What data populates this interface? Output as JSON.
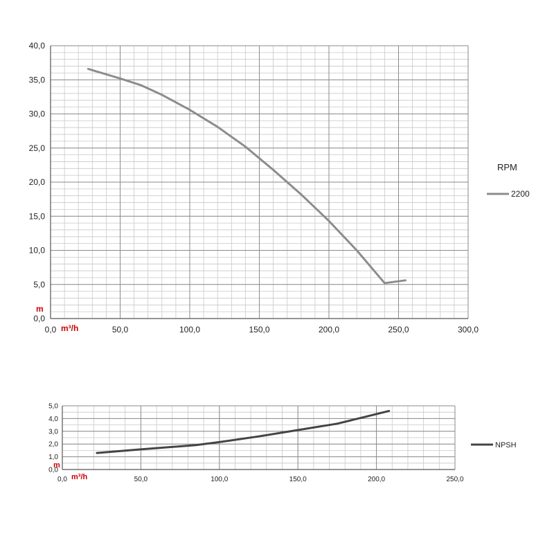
{
  "chart_data": [
    {
      "type": "line",
      "xlabel": "m³/h",
      "ylabel": "m",
      "xlim": [
        0,
        300
      ],
      "ylim": [
        0,
        40
      ],
      "x_ticks": [
        "0,0",
        "50,0",
        "100,0",
        "150,0",
        "200,0",
        "250,0",
        "300,0"
      ],
      "y_ticks": [
        "0,0",
        "5,0",
        "10,0",
        "15,0",
        "20,0",
        "25,0",
        "30,0",
        "35,0",
        "40,0"
      ],
      "grid": true,
      "legend_title": "RPM",
      "legend_position": "right",
      "series": [
        {
          "name": "2200",
          "color": "#8c8c8c",
          "x": [
            27,
            50,
            65,
            80,
            100,
            120,
            140,
            160,
            180,
            200,
            220,
            240,
            255
          ],
          "y": [
            36.6,
            35.2,
            34.2,
            32.8,
            30.6,
            28.1,
            25.2,
            21.8,
            18.2,
            14.3,
            10.0,
            5.2,
            5.6
          ]
        }
      ]
    },
    {
      "type": "line",
      "xlabel": "m³/h",
      "ylabel": "m",
      "xlim": [
        0,
        250
      ],
      "ylim": [
        0,
        5
      ],
      "x_ticks": [
        "0,0",
        "50,0",
        "100,0",
        "150,0",
        "200,0",
        "250,0"
      ],
      "y_ticks": [
        "0,0",
        "1,0",
        "2,0",
        "3,0",
        "4,0",
        "5,0"
      ],
      "grid": true,
      "legend_position": "right",
      "series": [
        {
          "name": "NPSH",
          "color": "#444444",
          "x": [
            22,
            50,
            85,
            100,
            125,
            150,
            175,
            195,
            208
          ],
          "y": [
            1.3,
            1.58,
            1.92,
            2.15,
            2.6,
            3.1,
            3.6,
            4.2,
            4.6
          ]
        }
      ]
    }
  ]
}
